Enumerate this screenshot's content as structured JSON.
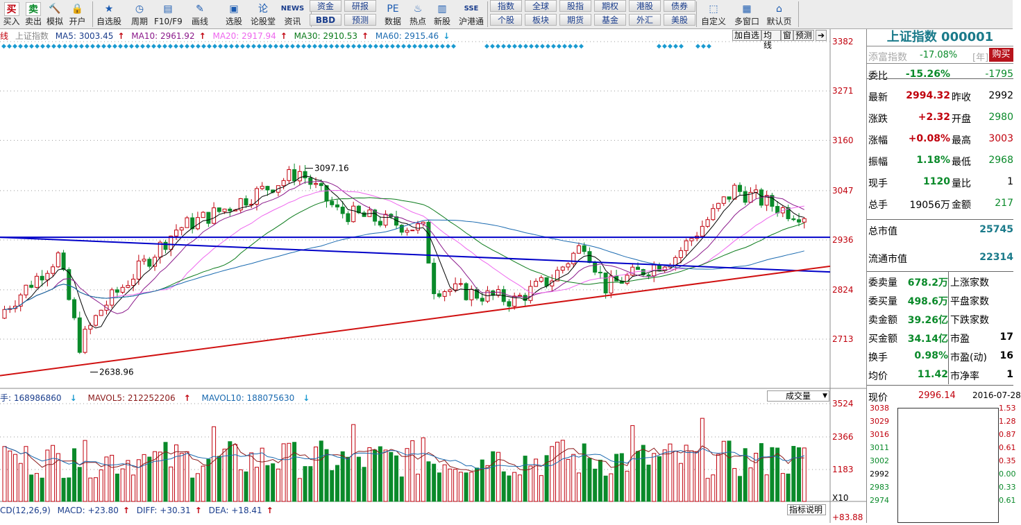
{
  "toolbar": {
    "buttons": [
      {
        "label": "买入",
        "icon": "buy-icon",
        "glyph": "买"
      },
      {
        "label": "卖出",
        "icon": "sell-icon",
        "glyph": "卖"
      },
      {
        "label": "模拟",
        "icon": "gavel-icon",
        "glyph": "🔨"
      },
      {
        "label": "开户",
        "icon": "lock-icon",
        "glyph": "🔒"
      },
      {
        "label": "自选股",
        "icon": "star-list-icon",
        "glyph": "★"
      },
      {
        "label": "周期",
        "icon": "clock-icon",
        "glyph": "◷"
      },
      {
        "label": "F10/F9",
        "icon": "f10-icon",
        "glyph": "▤"
      },
      {
        "label": "画线",
        "icon": "pen-icon",
        "glyph": "✎"
      },
      {
        "label": "选股",
        "icon": "screen-icon",
        "glyph": "▣"
      },
      {
        "label": "论股堂",
        "icon": "forum-icon",
        "glyph": "论"
      },
      {
        "label": "资讯",
        "icon": "news-icon",
        "glyph": "NEWS"
      },
      {
        "label": "数据",
        "icon": "pe-icon",
        "glyph": "PE"
      },
      {
        "label": "热点",
        "icon": "fire-icon",
        "glyph": "♨"
      },
      {
        "label": "新股",
        "icon": "new-stock-icon",
        "glyph": "▥"
      },
      {
        "label": "沪港通",
        "icon": "sse-hke-icon",
        "glyph": "SSE"
      },
      {
        "label": "自定义",
        "icon": "custom-icon",
        "glyph": "⬚"
      },
      {
        "label": "多窗口",
        "icon": "multi-window-icon",
        "glyph": "▦"
      },
      {
        "label": "默认页",
        "icon": "home-icon",
        "glyph": "⌂"
      }
    ],
    "small_buttons": [
      "资金",
      "研报",
      "BBD",
      "预测",
      "指数",
      "全球",
      "股指",
      "期权",
      "港股",
      "债券",
      "个股",
      "板块",
      "期货",
      "基金",
      "外汇",
      "美股"
    ]
  },
  "legend": {
    "prefix": "线",
    "name": "上证指数",
    "ma5": "MA5: 3003.45",
    "ma10": "MA10: 2961.92",
    "ma20": "MA20: 2917.94",
    "ma30": "MA30: 2910.53",
    "ma60": "MA60: 2915.46"
  },
  "chart_tabs": [
    "加自选",
    "均线",
    "窗",
    "预测"
  ],
  "price_axis": [
    "3382",
    "3271",
    "3160",
    "3047",
    "2936",
    "2824",
    "2713"
  ],
  "annotations": {
    "high": "3097.16",
    "low": "2638.96"
  },
  "volume": {
    "legend": {
      "vol": "手: 168986860",
      "mavol5": "MAVOL5: 212252206",
      "mavol10": "MAVOL10: 188075630"
    },
    "selector": "成交量",
    "axis": [
      "3524",
      "2366",
      "1183"
    ],
    "unit": "X10"
  },
  "macd": {
    "label": "CD(12,26,9)",
    "macd": "MACD: +23.80",
    "diff": "DIFF: +30.31",
    "dea": "DEA: +18.41",
    "axis": "+83.88",
    "help": "指标说明"
  },
  "colors": {
    "up": "#c0000c",
    "down": "#0a8a2a",
    "ma5": "#000000",
    "ma10": "#8b1a8b",
    "ma20": "#ee66ee",
    "ma30": "#0a7a1a",
    "ma60": "#1a6ab0",
    "trendline_blue": "#0000c8",
    "trendline_red": "#d01010"
  },
  "panel": {
    "title": "上证指数 000001",
    "sub_label": "添富指数",
    "sub_value": "-17.08%",
    "sub_unit": "[年]",
    "buy_button": "购买",
    "rows": [
      {
        "k": "委比",
        "v": "-15.26%",
        "k2": "",
        "v2": "-1795",
        "vc": "green",
        "v2c": "green"
      },
      {
        "k": "最新",
        "v": "2994.32",
        "k2": "昨收",
        "v2": "2992",
        "vc": "red",
        "v2c": ""
      },
      {
        "k": "涨跌",
        "v": "+2.32",
        "k2": "开盘",
        "v2": "2980",
        "vc": "red",
        "v2c": "green"
      },
      {
        "k": "涨幅",
        "v": "+0.08%",
        "k2": "最高",
        "v2": "3003",
        "vc": "red",
        "v2c": "red"
      },
      {
        "k": "振幅",
        "v": "1.18%",
        "k2": "最低",
        "v2": "2968",
        "vc": "green",
        "v2c": "green"
      },
      {
        "k": "现手",
        "v": "1120",
        "k2": "量比",
        "v2": "1",
        "vc": "green",
        "v2c": ""
      },
      {
        "k": "总手",
        "v": "19056万",
        "k2": "金额",
        "v2": "217",
        "vc": "",
        "v2c": "green"
      }
    ],
    "cap": [
      {
        "k": "总市值",
        "v": "25745"
      },
      {
        "k": "流通市值",
        "v": "22314"
      }
    ],
    "stats": [
      {
        "k": "委卖量",
        "v": "678.2万",
        "k2": "上涨家数",
        "v2": ""
      },
      {
        "k": "委买量",
        "v": "498.6万",
        "k2": "平盘家数",
        "v2": ""
      },
      {
        "k": "卖金额",
        "v": "39.26亿",
        "k2": "下跌家数",
        "v2": ""
      },
      {
        "k": "买金额",
        "v": "34.14亿",
        "k2": "市盈",
        "v2": "17"
      },
      {
        "k": "换手",
        "v": "0.98%",
        "k2": "市盈(动)",
        "v2": "16"
      },
      {
        "k": "均价",
        "v": "11.42",
        "k2": "市净率",
        "v2": "1"
      }
    ],
    "mini": {
      "label": "现价",
      "price": "2996.14",
      "date": "2016-07-28",
      "left_axis": [
        "3038",
        "3029",
        "3016",
        "3011",
        "3002",
        "2992",
        "2983",
        "2974"
      ],
      "right_axis": [
        "1.53",
        "1.28",
        "0.87",
        "0.61",
        "0.35",
        "0.00",
        "0.33",
        "0.61"
      ]
    }
  },
  "chart_data": {
    "type": "candlestick",
    "title": "上证指数",
    "ylim": [
      2600,
      3382
    ],
    "price_ticks": [
      3382,
      3271,
      3160,
      3047,
      2936,
      2824,
      2713
    ],
    "annotated_high": 3097.16,
    "annotated_low": 2638.96,
    "volume_ticks": [
      3524,
      2366,
      1183
    ],
    "moving_averages": {
      "MA5": 3003.45,
      "MA10": 2961.92,
      "MA20": 2917.94,
      "MA30": 2910.53,
      "MA60": 2915.46
    },
    "macd": {
      "MACD": 23.8,
      "DIFF": 30.31,
      "DEA": 18.41,
      "axis_max": 83.88
    }
  }
}
